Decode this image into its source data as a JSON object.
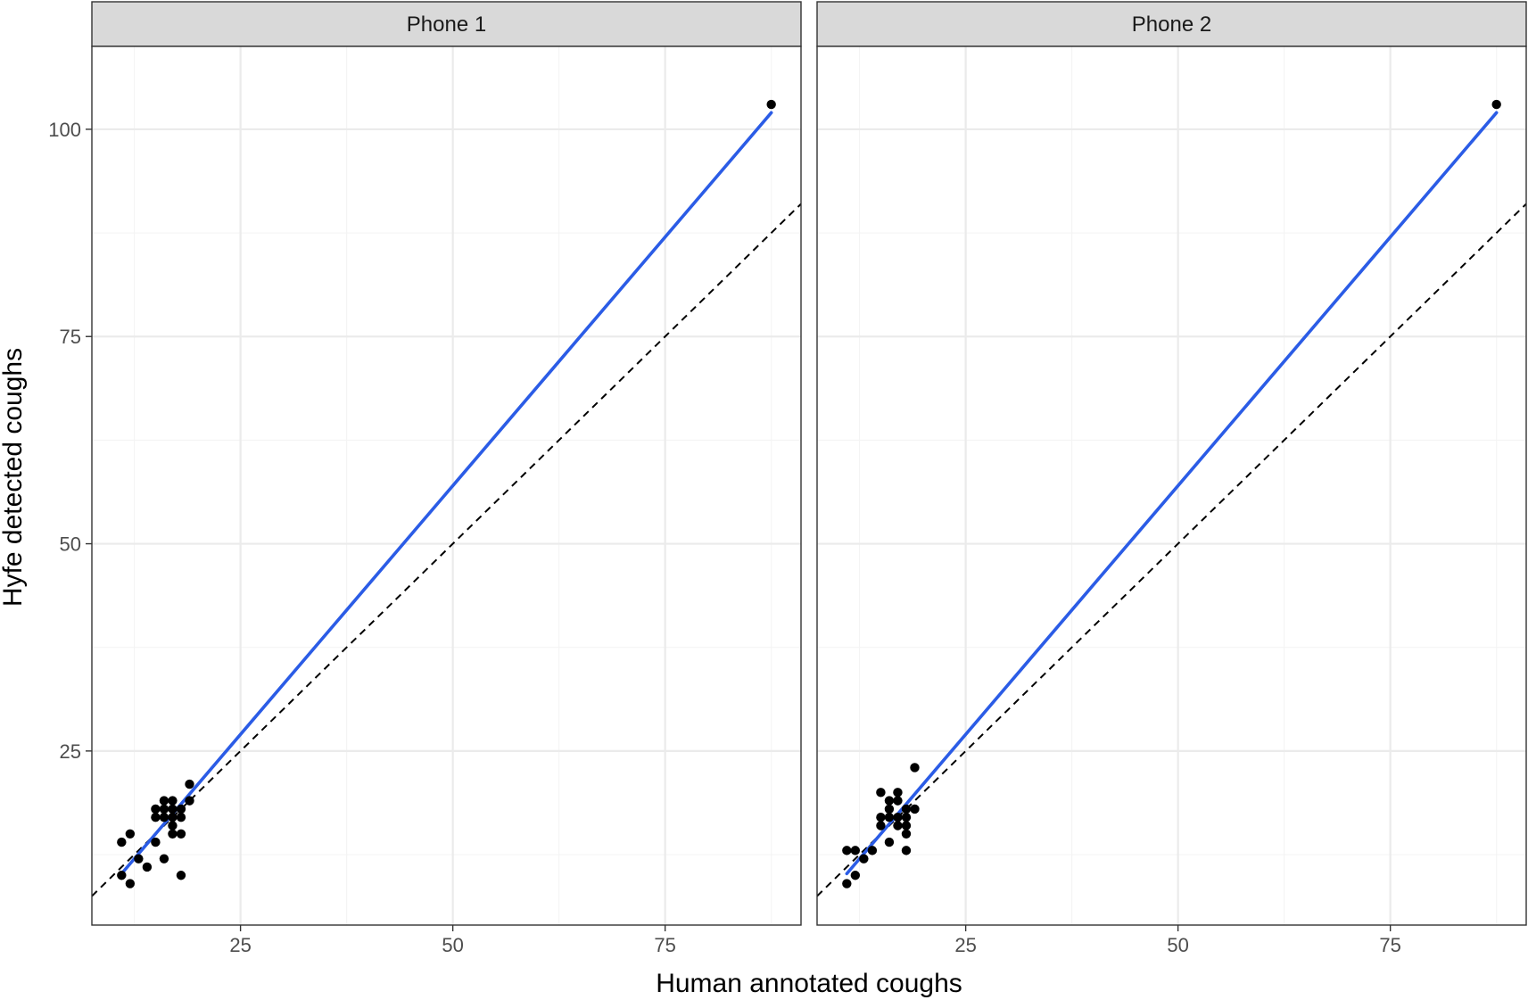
{
  "chart_data": {
    "type": "scatter",
    "xlabel": "Human annotated coughs",
    "ylabel": "Hyfe detected coughs",
    "xlim": [
      7.5,
      91
    ],
    "ylim": [
      4,
      110
    ],
    "x_ticks": [
      25,
      50,
      75
    ],
    "x_tick_labels": [
      "25",
      "50",
      "75"
    ],
    "y_ticks": [
      25,
      50,
      75,
      100
    ],
    "y_tick_labels": [
      "25",
      "50",
      "75",
      "100"
    ],
    "x_minor": [
      12.5,
      37.5,
      62.5,
      87.5
    ],
    "y_minor": [
      12.5,
      37.5,
      62.5,
      87.5
    ],
    "grid": true,
    "reference_line": {
      "style": "dashed",
      "slope": 1,
      "intercept": 0,
      "color": "#000000"
    },
    "fit_color": "#2b5ce6",
    "point_color": "#000000",
    "panels": [
      {
        "label": "Phone 1",
        "fit": {
          "x": [
            11,
            87.5
          ],
          "y": [
            10.2,
            102
          ]
        },
        "points": [
          {
            "x": 87.5,
            "y": 103
          },
          {
            "x": 11,
            "y": 14
          },
          {
            "x": 12,
            "y": 15
          },
          {
            "x": 11,
            "y": 10
          },
          {
            "x": 12,
            "y": 9
          },
          {
            "x": 13,
            "y": 12
          },
          {
            "x": 14,
            "y": 11
          },
          {
            "x": 15,
            "y": 14
          },
          {
            "x": 15,
            "y": 17
          },
          {
            "x": 15,
            "y": 18
          },
          {
            "x": 16,
            "y": 17
          },
          {
            "x": 16,
            "y": 18
          },
          {
            "x": 16,
            "y": 19
          },
          {
            "x": 16,
            "y": 12
          },
          {
            "x": 17,
            "y": 17
          },
          {
            "x": 17,
            "y": 18
          },
          {
            "x": 17,
            "y": 19
          },
          {
            "x": 17,
            "y": 16
          },
          {
            "x": 17,
            "y": 15
          },
          {
            "x": 18,
            "y": 17
          },
          {
            "x": 18,
            "y": 18
          },
          {
            "x": 18,
            "y": 15
          },
          {
            "x": 18,
            "y": 10
          },
          {
            "x": 19,
            "y": 21
          },
          {
            "x": 19,
            "y": 19
          }
        ]
      },
      {
        "label": "Phone 2",
        "fit": {
          "x": [
            11,
            87.5
          ],
          "y": [
            10.2,
            102
          ]
        },
        "points": [
          {
            "x": 87.5,
            "y": 103
          },
          {
            "x": 11,
            "y": 13
          },
          {
            "x": 11,
            "y": 9
          },
          {
            "x": 12,
            "y": 13
          },
          {
            "x": 12,
            "y": 10
          },
          {
            "x": 13,
            "y": 12
          },
          {
            "x": 14,
            "y": 13
          },
          {
            "x": 15,
            "y": 20
          },
          {
            "x": 15,
            "y": 17
          },
          {
            "x": 15,
            "y": 16
          },
          {
            "x": 16,
            "y": 18
          },
          {
            "x": 16,
            "y": 19
          },
          {
            "x": 16,
            "y": 17
          },
          {
            "x": 16,
            "y": 14
          },
          {
            "x": 17,
            "y": 20
          },
          {
            "x": 17,
            "y": 19
          },
          {
            "x": 17,
            "y": 17
          },
          {
            "x": 17,
            "y": 16
          },
          {
            "x": 18,
            "y": 18
          },
          {
            "x": 18,
            "y": 17
          },
          {
            "x": 18,
            "y": 16
          },
          {
            "x": 18,
            "y": 15
          },
          {
            "x": 18,
            "y": 13
          },
          {
            "x": 19,
            "y": 23
          },
          {
            "x": 19,
            "y": 18
          }
        ]
      }
    ]
  }
}
